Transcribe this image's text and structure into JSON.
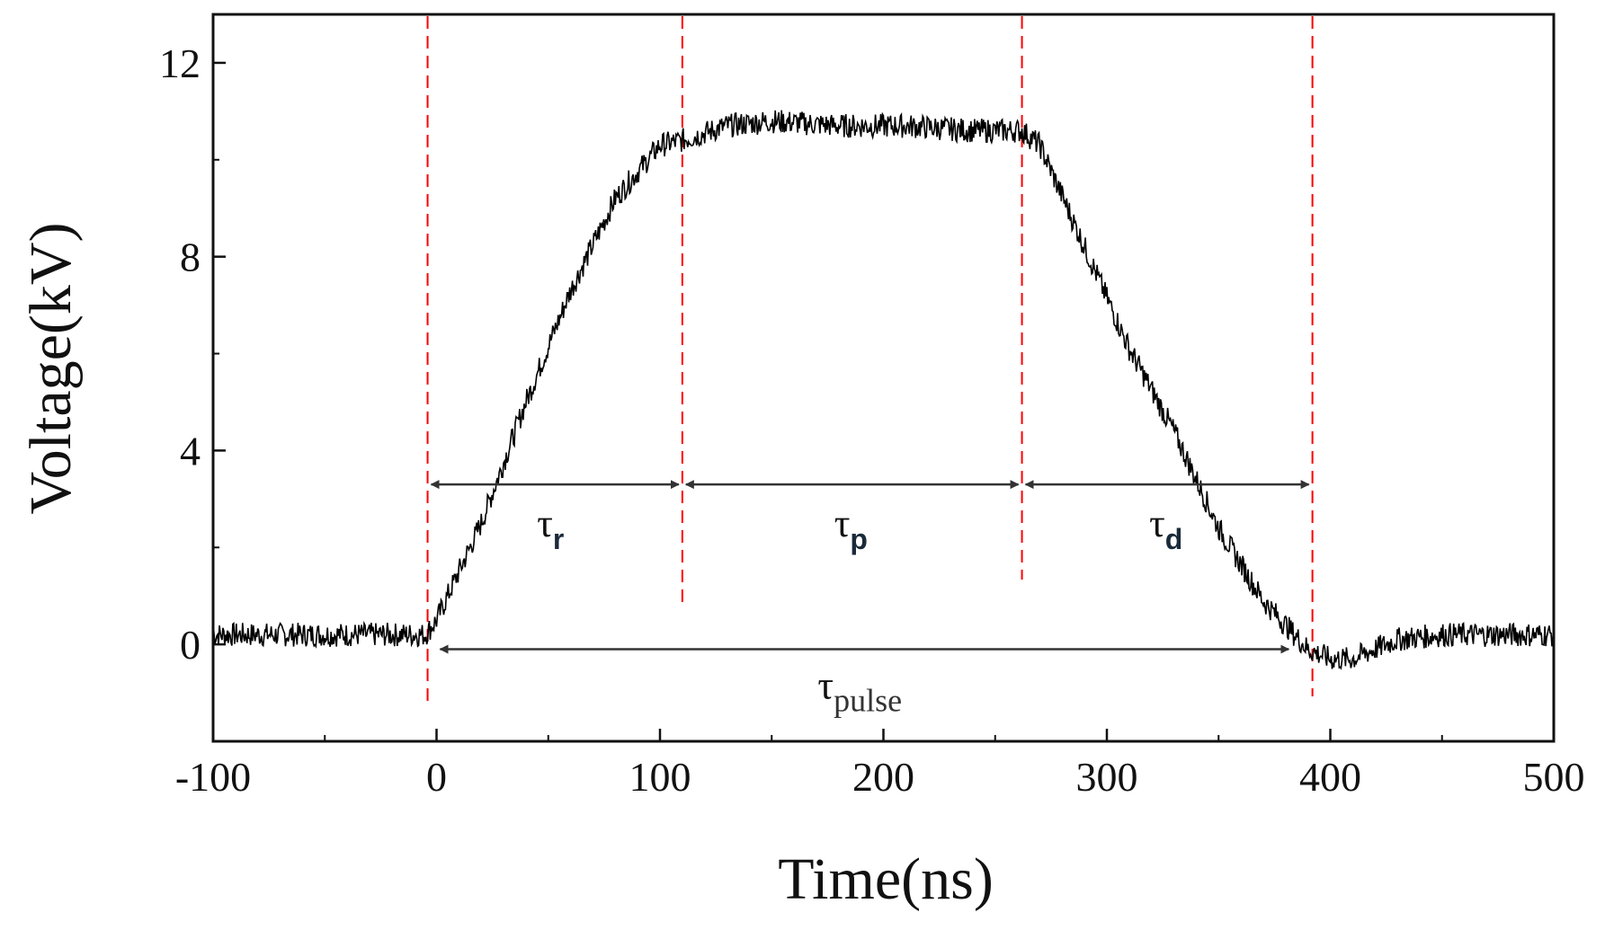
{
  "chart_data": {
    "type": "line",
    "title": "",
    "xlabel": "Time(ns)",
    "ylabel": "Voltage(kV)",
    "xlim": [
      -100,
      500
    ],
    "ylim": [
      -2,
      13
    ],
    "xticks": [
      -100,
      0,
      100,
      200,
      300,
      400,
      500
    ],
    "xtick_labels": [
      "-100",
      "0",
      "100",
      "200",
      "300",
      "400",
      "500"
    ],
    "yticks": [
      0,
      4,
      8,
      12
    ],
    "ytick_labels": [
      "0",
      "4",
      "8",
      "12"
    ],
    "grid": false,
    "series": [
      {
        "color": "#000000",
        "x": [
          -100,
          -5,
          0,
          20,
          40,
          60,
          80,
          100,
          110,
          130,
          150,
          180,
          210,
          240,
          262,
          270,
          290,
          310,
          330,
          350,
          370,
          390,
          400,
          410,
          430,
          450,
          500
        ],
        "y": [
          0.2,
          0.2,
          0.5,
          2.5,
          5.0,
          7.3,
          9.2,
          10.3,
          10.4,
          10.7,
          10.8,
          10.7,
          10.7,
          10.6,
          10.6,
          10.3,
          8.2,
          6.1,
          4.4,
          2.4,
          0.9,
          -0.1,
          -0.3,
          -0.3,
          0.1,
          0.2,
          0.2
        ]
      }
    ],
    "markers": {
      "color": "#ff0000",
      "x": [
        -4,
        110,
        262,
        392
      ]
    },
    "annotations": {
      "tau_symbol": "τ",
      "intervals": [
        {
          "sub": "r",
          "from": -4,
          "to": 110,
          "at_y": 3.3
        },
        {
          "sub": "p",
          "from": 110,
          "to": 262,
          "at_y": 3.3
        },
        {
          "sub": "d",
          "from": 262,
          "to": 392,
          "at_y": 3.3
        },
        {
          "sub": "pulse",
          "from": 0,
          "to": 383,
          "at_y": -0.1
        }
      ]
    }
  }
}
